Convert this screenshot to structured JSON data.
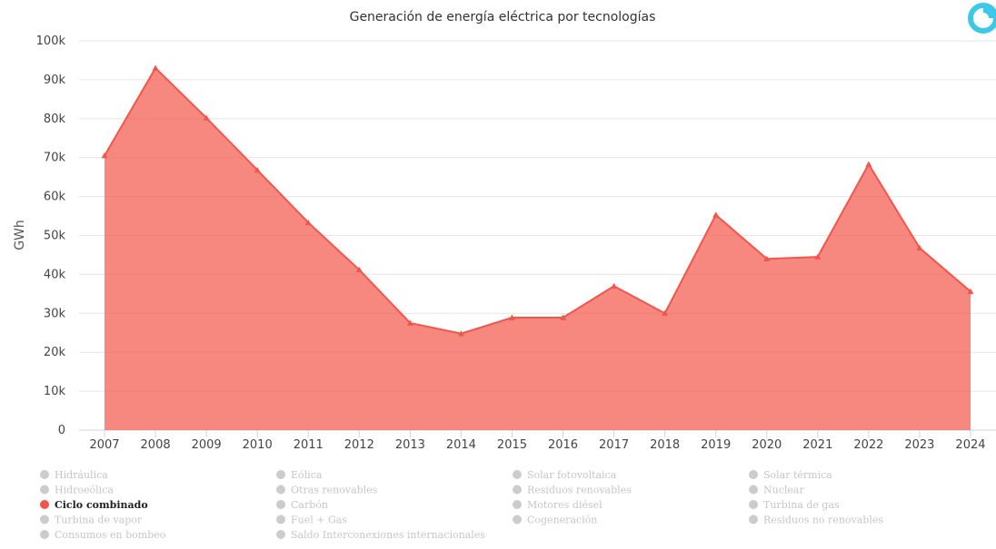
{
  "chart_data": {
    "type": "area",
    "title": "Generación de energía eléctrica por tecnologías",
    "ylabel": "GWh",
    "xlabel": "",
    "ylim": [
      0,
      100000
    ],
    "grid": true,
    "y_ticks": [
      {
        "value": 0,
        "label": "0"
      },
      {
        "value": 10000,
        "label": "10k"
      },
      {
        "value": 20000,
        "label": "20k"
      },
      {
        "value": 30000,
        "label": "30k"
      },
      {
        "value": 40000,
        "label": "40k"
      },
      {
        "value": 50000,
        "label": "50k"
      },
      {
        "value": 60000,
        "label": "60k"
      },
      {
        "value": 70000,
        "label": "70k"
      },
      {
        "value": 80000,
        "label": "80k"
      },
      {
        "value": 90000,
        "label": "90k"
      },
      {
        "value": 100000,
        "label": "100k"
      }
    ],
    "categories": [
      "2007",
      "2008",
      "2009",
      "2010",
      "2011",
      "2012",
      "2013",
      "2014",
      "2015",
      "2016",
      "2017",
      "2018",
      "2019",
      "2020",
      "2021",
      "2022",
      "2023",
      "2024"
    ],
    "series": [
      {
        "name": "Ciclo combinado",
        "color": "#f4554a",
        "values": [
          70500,
          93000,
          80200,
          66800,
          53300,
          41200,
          27500,
          24800,
          28900,
          28900,
          37000,
          30000,
          55300,
          44000,
          44500,
          68300,
          46800,
          35600
        ]
      }
    ],
    "legend_position": "bottom",
    "legend": [
      {
        "label": "Hidráulica",
        "active": false
      },
      {
        "label": "Eólica",
        "active": false
      },
      {
        "label": "Solar fotovoltaica",
        "active": false
      },
      {
        "label": "Solar térmica",
        "active": false
      },
      {
        "label": "Hidroeólica",
        "active": false
      },
      {
        "label": "Otras renovables",
        "active": false
      },
      {
        "label": "Residuos renovables",
        "active": false
      },
      {
        "label": "Nuclear",
        "active": false
      },
      {
        "label": "Ciclo combinado",
        "active": true
      },
      {
        "label": "Carbón",
        "active": false
      },
      {
        "label": "Motores diésel",
        "active": false
      },
      {
        "label": "Turbina de gas",
        "active": false
      },
      {
        "label": "Turbina de vapor",
        "active": false
      },
      {
        "label": "Fuel + Gas",
        "active": false
      },
      {
        "label": "Cogeneración",
        "active": false
      },
      {
        "label": "Residuos no renovables",
        "active": false
      },
      {
        "label": "Consumos en bombeo",
        "active": false
      },
      {
        "label": "Saldo Interconexiones internacionales",
        "active": false
      }
    ],
    "colors": {
      "active_marker": "#f4554a",
      "inactive_marker": "#cccccc",
      "active_text": "#222222",
      "inactive_text": "#c6c6c6",
      "grid": "#e6e6e6",
      "axis": "#ccd6eb"
    }
  },
  "logo": {
    "icon": "brand-logo-icon",
    "color": "#3cc8e8"
  }
}
